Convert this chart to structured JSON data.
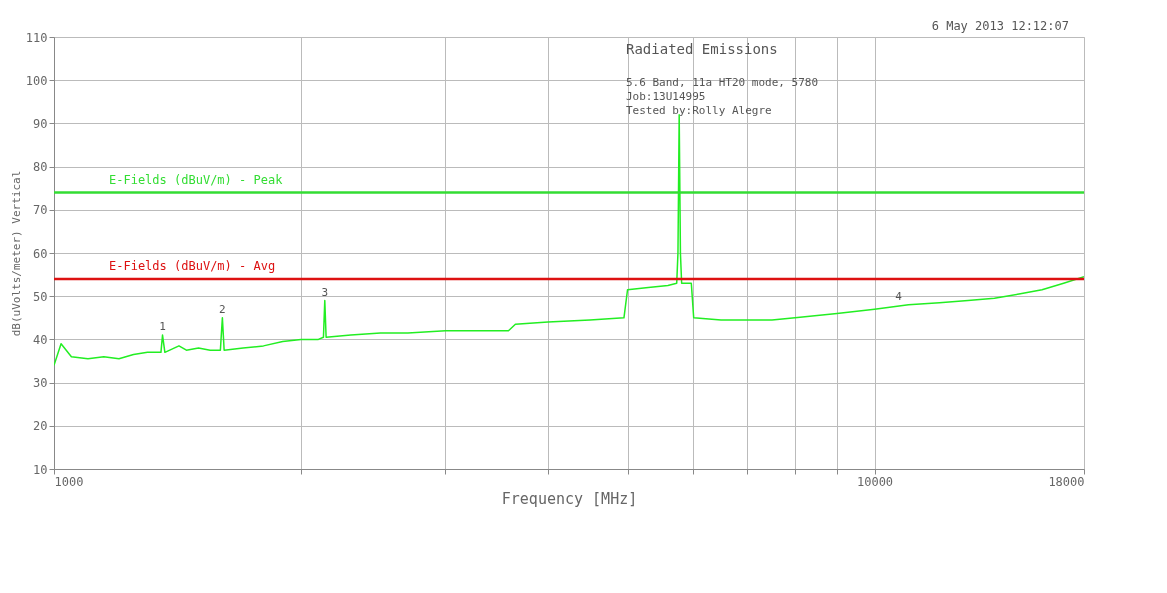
{
  "chart_data": {
    "type": "line",
    "xlabel": "Frequency [MHz]",
    "ylabel": "dB(uVolts/meter) Vertical",
    "log": "x",
    "xlim": [
      1000,
      18000
    ],
    "xticks": [
      1000,
      {
        "value": 2000,
        "label": null
      },
      {
        "value": 3000,
        "label": null
      },
      {
        "value": 4000,
        "label": null
      },
      {
        "value": 5000,
        "label": null
      },
      {
        "value": 6000,
        "label": null
      },
      {
        "value": 7000,
        "label": null
      },
      {
        "value": 8000,
        "label": null
      },
      {
        "value": 9000,
        "label": null
      },
      10000,
      18000
    ],
    "ylim": [
      10,
      110
    ],
    "yticks": [
      10,
      20,
      30,
      40,
      50,
      60,
      70,
      80,
      90,
      100,
      110
    ],
    "grid": true,
    "marker": "none",
    "line_style": "solid",
    "series": [
      {
        "color": "#22ee22",
        "x": [
          1000,
          1020,
          1050,
          1100,
          1150,
          1200,
          1250,
          1300,
          1350,
          1356,
          1365,
          1420,
          1450,
          1500,
          1550,
          1595,
          1604,
          1612,
          1700,
          1800,
          1900,
          2000,
          2100,
          2130,
          2138,
          2146,
          2300,
          2500,
          2700,
          3000,
          3300,
          3580,
          3650,
          4000,
          4500,
          4950,
          5000,
          5300,
          5600,
          5740,
          5760,
          5780,
          5800,
          5820,
          5900,
          5980,
          6020,
          6500,
          7000,
          7500,
          8000,
          9000,
          10000,
          11000,
          12000,
          13000,
          14000,
          15000,
          16000,
          17000,
          18000
        ],
        "values": [
          34,
          39,
          36,
          35.5,
          36,
          35.5,
          36.5,
          37,
          37,
          41,
          37,
          38.5,
          37.5,
          38,
          37.5,
          37.5,
          45,
          37.5,
          38,
          38.5,
          39.5,
          40,
          40,
          40.5,
          49,
          40.5,
          41,
          41.5,
          41.5,
          42,
          42,
          42,
          43.5,
          44,
          44.5,
          45,
          51.5,
          52,
          52.5,
          53,
          60,
          92,
          60,
          53,
          53,
          53,
          45,
          44.5,
          44.5,
          44.5,
          45,
          46,
          47,
          48,
          48.5,
          49,
          49.5,
          50.5,
          51.5,
          53,
          54.5
        ]
      }
    ],
    "ref_lines": [
      {
        "axis": "y",
        "value": 74,
        "label": "E-Fields (dBuV/m) - Peak",
        "color": "#33dd33"
      },
      {
        "axis": "y",
        "value": 54,
        "label": "E-Fields (dBuV/m) - Avg",
        "color": "#dd1111"
      }
    ],
    "annotations": [
      "6 May 2013   12:12:07",
      "Radiated Emissions",
      "5.6 Band, 11a HT20 mode, 5780",
      "Job:13U14995",
      "Tested by:Rolly Alegre",
      {
        "text": "1",
        "x": 1356,
        "y": 41
      },
      {
        "text": "2",
        "x": 1604,
        "y": 45
      },
      {
        "text": "3",
        "x": 2138,
        "y": 49
      },
      {
        "text": "4",
        "x": 10700,
        "y": 48
      }
    ]
  }
}
